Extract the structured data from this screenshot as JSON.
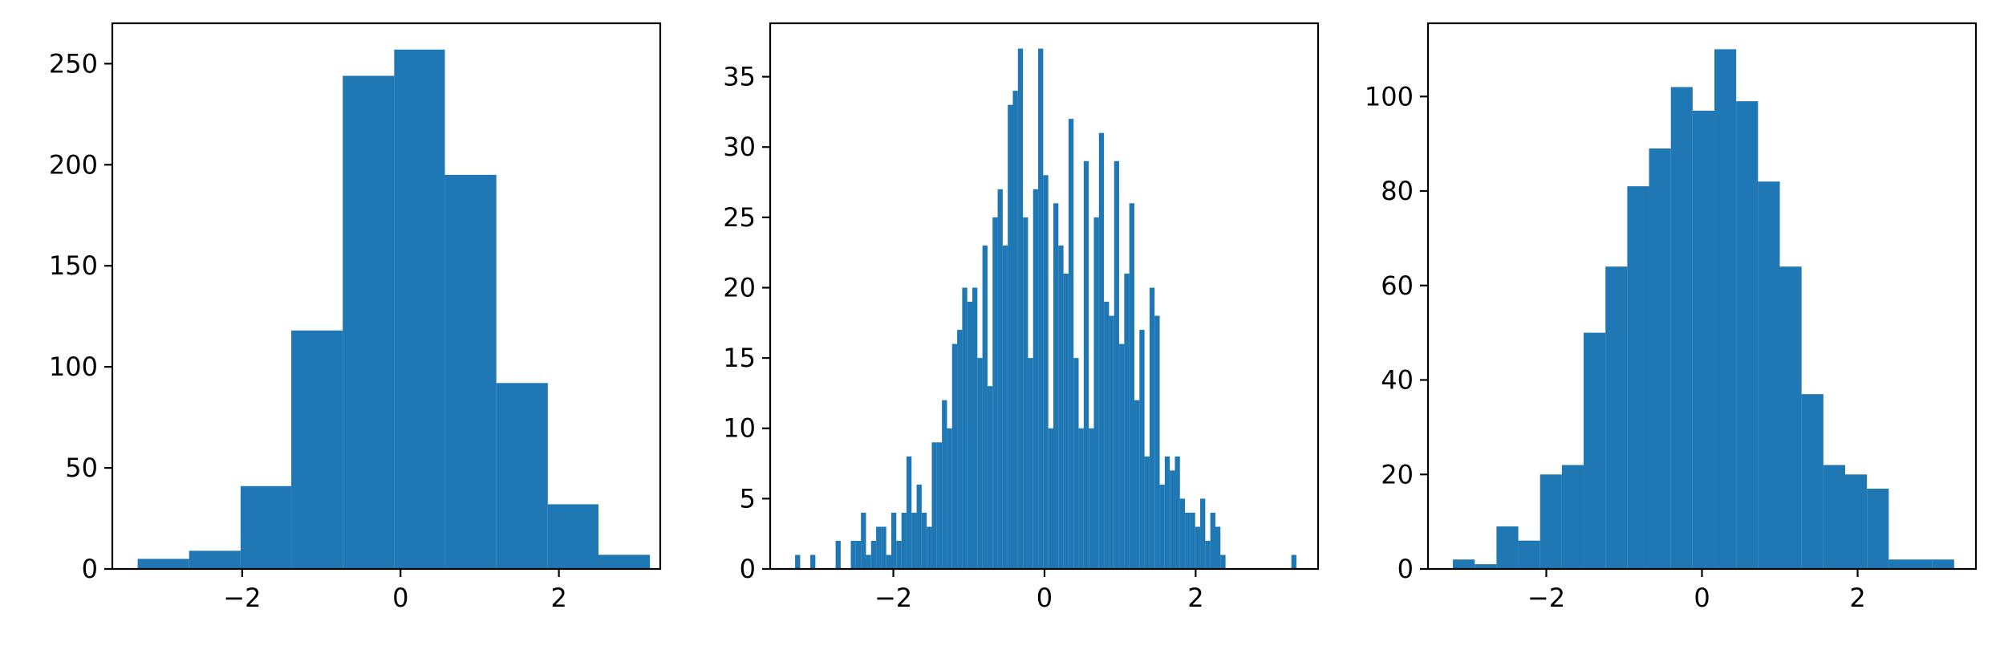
{
  "figure": {
    "background": "#ffffff",
    "bar_color": "#1f77b4",
    "axes_color": "#000000"
  },
  "chart_data": [
    {
      "type": "bar",
      "subtype": "histogram",
      "title": "",
      "xlabel": "",
      "ylabel": "",
      "grid": false,
      "xlim": [
        -3.64,
        3.28
      ],
      "ylim": [
        0,
        270
      ],
      "xticks": [
        -2,
        0,
        2
      ],
      "yticks": [
        0,
        50,
        100,
        150,
        200,
        250
      ],
      "xtick_labels": [
        "−2",
        "0",
        "2"
      ],
      "ytick_labels": [
        "0",
        "50",
        "100",
        "150",
        "200",
        "250"
      ],
      "bin_edges": [
        -3.32,
        -2.67,
        -2.02,
        -1.38,
        -0.73,
        -0.08,
        0.56,
        1.21,
        1.86,
        2.5,
        3.15
      ],
      "counts": [
        5,
        9,
        41,
        118,
        244,
        257,
        195,
        92,
        32,
        7
      ]
    },
    {
      "type": "bar",
      "subtype": "histogram",
      "title": "",
      "xlabel": "",
      "ylabel": "",
      "grid": false,
      "xlim": [
        -3.63,
        3.62
      ],
      "ylim": [
        0,
        38.8
      ],
      "xticks": [
        -2,
        0,
        2
      ],
      "yticks": [
        0,
        5,
        10,
        15,
        20,
        25,
        30,
        35
      ],
      "xtick_labels": [
        "−2",
        "0",
        "2"
      ],
      "ytick_labels": [
        "0",
        "5",
        "10",
        "15",
        "20",
        "25",
        "30",
        "35"
      ],
      "bin_edges": [
        -3.3,
        -3.233,
        -3.166,
        -3.099,
        -3.032,
        -2.965,
        -2.898,
        -2.831,
        -2.764,
        -2.697,
        -2.63,
        -2.563,
        -2.496,
        -2.429,
        -2.362,
        -2.295,
        -2.228,
        -2.161,
        -2.094,
        -2.027,
        -1.96,
        -1.893,
        -1.826,
        -1.759,
        -1.692,
        -1.625,
        -1.558,
        -1.491,
        -1.424,
        -1.357,
        -1.29,
        -1.223,
        -1.156,
        -1.089,
        -1.022,
        -0.955,
        -0.888,
        -0.821,
        -0.754,
        -0.687,
        -0.62,
        -0.553,
        -0.486,
        -0.419,
        -0.352,
        -0.285,
        -0.218,
        -0.151,
        -0.084,
        -0.017,
        0.05,
        0.117,
        0.184,
        0.251,
        0.318,
        0.385,
        0.452,
        0.519,
        0.586,
        0.653,
        0.72,
        0.787,
        0.854,
        0.921,
        0.988,
        1.055,
        1.122,
        1.189,
        1.256,
        1.323,
        1.39,
        1.457,
        1.524,
        1.591,
        1.658,
        1.725,
        1.792,
        1.859,
        1.926,
        1.993,
        2.06,
        2.127,
        2.194,
        2.261,
        2.328,
        2.395,
        2.462,
        2.529,
        2.596,
        2.663,
        2.73,
        2.797,
        2.864,
        2.931,
        2.998,
        3.065,
        3.132,
        3.199,
        3.266,
        3.333
      ],
      "counts": [
        1,
        0,
        0,
        1,
        0,
        0,
        0,
        0,
        2,
        0,
        0,
        2,
        2,
        4,
        1,
        2,
        3,
        3,
        1,
        4,
        2,
        4,
        8,
        4,
        6,
        4,
        3,
        9,
        9,
        12,
        10,
        16,
        17,
        20,
        19,
        20,
        15,
        23,
        13,
        25,
        27,
        23,
        33,
        34,
        37,
        25,
        15,
        27,
        37,
        28,
        10,
        26,
        23,
        21,
        32,
        15,
        10,
        29,
        10,
        25,
        31,
        19,
        18,
        29,
        16,
        21,
        26,
        12,
        17,
        8,
        20,
        18,
        6,
        8,
        7,
        8,
        5,
        4,
        4,
        3,
        5,
        2,
        4,
        3,
        1,
        0,
        0,
        0,
        0,
        0,
        0,
        0,
        0,
        0,
        0,
        0,
        0,
        0,
        1
      ]
    },
    {
      "type": "bar",
      "subtype": "histogram",
      "title": "",
      "xlabel": "",
      "ylabel": "",
      "grid": false,
      "xlim": [
        -3.52,
        3.52
      ],
      "ylim": [
        0,
        115.5
      ],
      "xticks": [
        -2,
        0,
        2
      ],
      "yticks": [
        0,
        20,
        40,
        60,
        80,
        100
      ],
      "xtick_labels": [
        "−2",
        "0",
        "2"
      ],
      "ytick_labels": [
        "0",
        "20",
        "40",
        "60",
        "80",
        "100"
      ],
      "bin_edges": [
        -3.2,
        -2.92,
        -2.64,
        -2.36,
        -2.08,
        -1.8,
        -1.52,
        -1.24,
        -0.96,
        -0.68,
        -0.4,
        -0.12,
        0.16,
        0.44,
        0.72,
        1.0,
        1.28,
        1.56,
        1.84,
        2.12,
        2.4,
        2.68,
        2.96,
        3.24
      ],
      "counts": [
        2,
        1,
        9,
        6,
        20,
        22,
        50,
        64,
        81,
        89,
        102,
        97,
        110,
        99,
        82,
        64,
        37,
        22,
        20,
        17,
        2,
        2,
        2
      ]
    }
  ]
}
